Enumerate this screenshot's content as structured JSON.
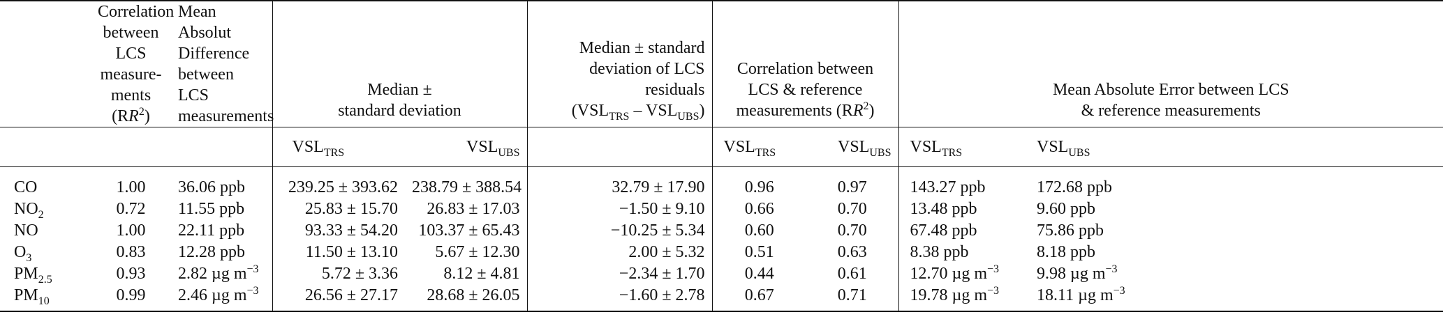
{
  "header": {
    "col_corr_lcs": "Correlation between LCS measure- ments (R²)",
    "col_corr_lcs_lines": [
      "Correlation",
      "between LCS",
      "measure-",
      "ments (R",
      "2",
      ")"
    ],
    "col_mad_lines": [
      "Mean Absolut",
      "Difference",
      "between LCS",
      "measurements"
    ],
    "col_median_lines": [
      "Median ±",
      "standard deviation"
    ],
    "col_residuals_lines": [
      "Median ± standard",
      "deviation of LCS residuals"
    ],
    "col_residuals_formula": {
      "a": "VSL",
      "a_sub": "TRS",
      "op": " – ",
      "b": "VSL",
      "b_sub": "UBS"
    },
    "col_corr_ref_lines": [
      "Correlation between",
      "LCS & reference",
      "measurements (R",
      "2",
      ")"
    ],
    "col_mae_lines": [
      "Mean Absolute Error between LCS",
      "& reference measurements"
    ],
    "sub_vsl": "VSL",
    "sub_trs": "TRS",
    "sub_ubs": "UBS"
  },
  "rows": [
    {
      "pollutant": "CO",
      "pollutant_sub": "",
      "corr": "1.00",
      "mad": "36.06 ppb",
      "mad_unit_exp": "",
      "med_trs": "239.25 ± 393.62",
      "med_ubs": "238.79 ± 388.54",
      "resid": "32.79 ± 17.90",
      "corr_trs": "0.96",
      "corr_ubs": "0.97",
      "mae_trs": "143.27 ppb",
      "mae_trs_exp": "",
      "mae_ubs": "172.68 ppb",
      "mae_ubs_exp": ""
    },
    {
      "pollutant": "NO",
      "pollutant_sub": "2",
      "corr": "0.72",
      "mad": "11.55 ppb",
      "mad_unit_exp": "",
      "med_trs": "25.83 ± 15.70",
      "med_ubs": "26.83 ± 17.03",
      "resid": "−1.50 ± 9.10",
      "corr_trs": "0.66",
      "corr_ubs": "0.70",
      "mae_trs": "13.48 ppb",
      "mae_trs_exp": "",
      "mae_ubs": "9.60 ppb",
      "mae_ubs_exp": ""
    },
    {
      "pollutant": "NO",
      "pollutant_sub": "",
      "corr": "1.00",
      "mad": "22.11 ppb",
      "mad_unit_exp": "",
      "med_trs": "93.33 ± 54.20",
      "med_ubs": "103.37 ± 65.43",
      "resid": "−10.25 ± 5.34",
      "corr_trs": "0.60",
      "corr_ubs": "0.70",
      "mae_trs": "67.48 ppb",
      "mae_trs_exp": "",
      "mae_ubs": "75.86 ppb",
      "mae_ubs_exp": ""
    },
    {
      "pollutant": "O",
      "pollutant_sub": "3",
      "corr": "0.83",
      "mad": "12.28 ppb",
      "mad_unit_exp": "",
      "med_trs": "11.50 ± 13.10",
      "med_ubs": "5.67 ± 12.30",
      "resid": "2.00 ± 5.32",
      "corr_trs": "0.51",
      "corr_ubs": "0.63",
      "mae_trs": "8.38 ppb",
      "mae_trs_exp": "",
      "mae_ubs": "8.18 ppb",
      "mae_ubs_exp": ""
    },
    {
      "pollutant": "PM",
      "pollutant_sub": "2.5",
      "corr": "0.93",
      "mad": "2.82 µg m",
      "mad_unit_exp": "−3",
      "med_trs": "5.72 ± 3.36",
      "med_ubs": "8.12 ± 4.81",
      "resid": "−2.34 ± 1.70",
      "corr_trs": "0.44",
      "corr_ubs": "0.61",
      "mae_trs": "12.70 µg m",
      "mae_trs_exp": "−3",
      "mae_ubs": "9.98 µg m",
      "mae_ubs_exp": "−3"
    },
    {
      "pollutant": "PM",
      "pollutant_sub": "10",
      "corr": "0.99",
      "mad": "2.46 µg m",
      "mad_unit_exp": "−3",
      "med_trs": "26.56 ± 27.17",
      "med_ubs": "28.68 ± 26.05",
      "resid": "−1.60 ± 2.78",
      "corr_trs": "0.67",
      "corr_ubs": "0.71",
      "mae_trs": "19.78 µg m",
      "mae_trs_exp": "−3",
      "mae_ubs": "18.11 µg m",
      "mae_ubs_exp": "−3"
    }
  ]
}
